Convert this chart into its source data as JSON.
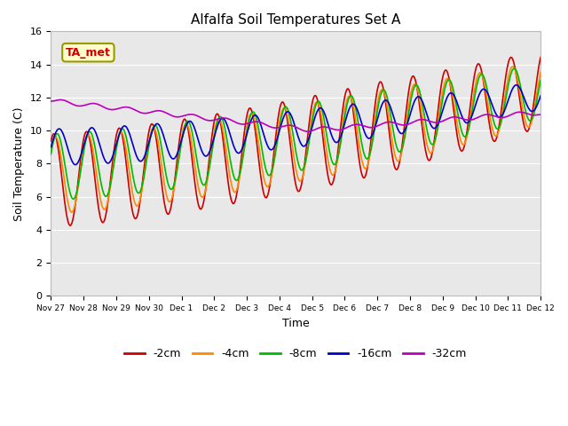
{
  "title": "Alfalfa Soil Temperatures Set A",
  "xlabel": "Time",
  "ylabel": "Soil Temperature (C)",
  "ylim": [
    0,
    16
  ],
  "yticks": [
    0,
    2,
    4,
    6,
    8,
    10,
    12,
    14,
    16
  ],
  "plot_bg_color": "#e8e8e8",
  "fig_bg_color": "#ffffff",
  "grid_color": "#ffffff",
  "lines": {
    "-2cm": {
      "color": "#cc0000",
      "lw": 1.2
    },
    "-4cm": {
      "color": "#ff8800",
      "lw": 1.2
    },
    "-8cm": {
      "color": "#00bb00",
      "lw": 1.2
    },
    "-16cm": {
      "color": "#0000cc",
      "lw": 1.2
    },
    "-32cm": {
      "color": "#bb00bb",
      "lw": 1.2
    }
  },
  "annotation": {
    "text": "TA_met",
    "fontsize": 9,
    "color": "#cc0000",
    "bg": "#ffffcc",
    "border_color": "#999900"
  },
  "legend_labels": [
    "-2cm",
    "-4cm",
    "-8cm",
    "-16cm",
    "-32cm"
  ],
  "legend_colors": [
    "#cc0000",
    "#ff8800",
    "#00bb00",
    "#0000cc",
    "#bb00bb"
  ],
  "xtick_labels": [
    "Nov 27",
    "Nov 28",
    "Nov 29",
    "Nov 30",
    "Dec 1",
    "Dec 2",
    "Dec 3",
    "Dec 4",
    "Dec 5",
    "Dec 6",
    "Dec 7",
    "Dec 8",
    "Dec 9",
    "Dec 10",
    "Dec 11",
    "Dec 12"
  ]
}
